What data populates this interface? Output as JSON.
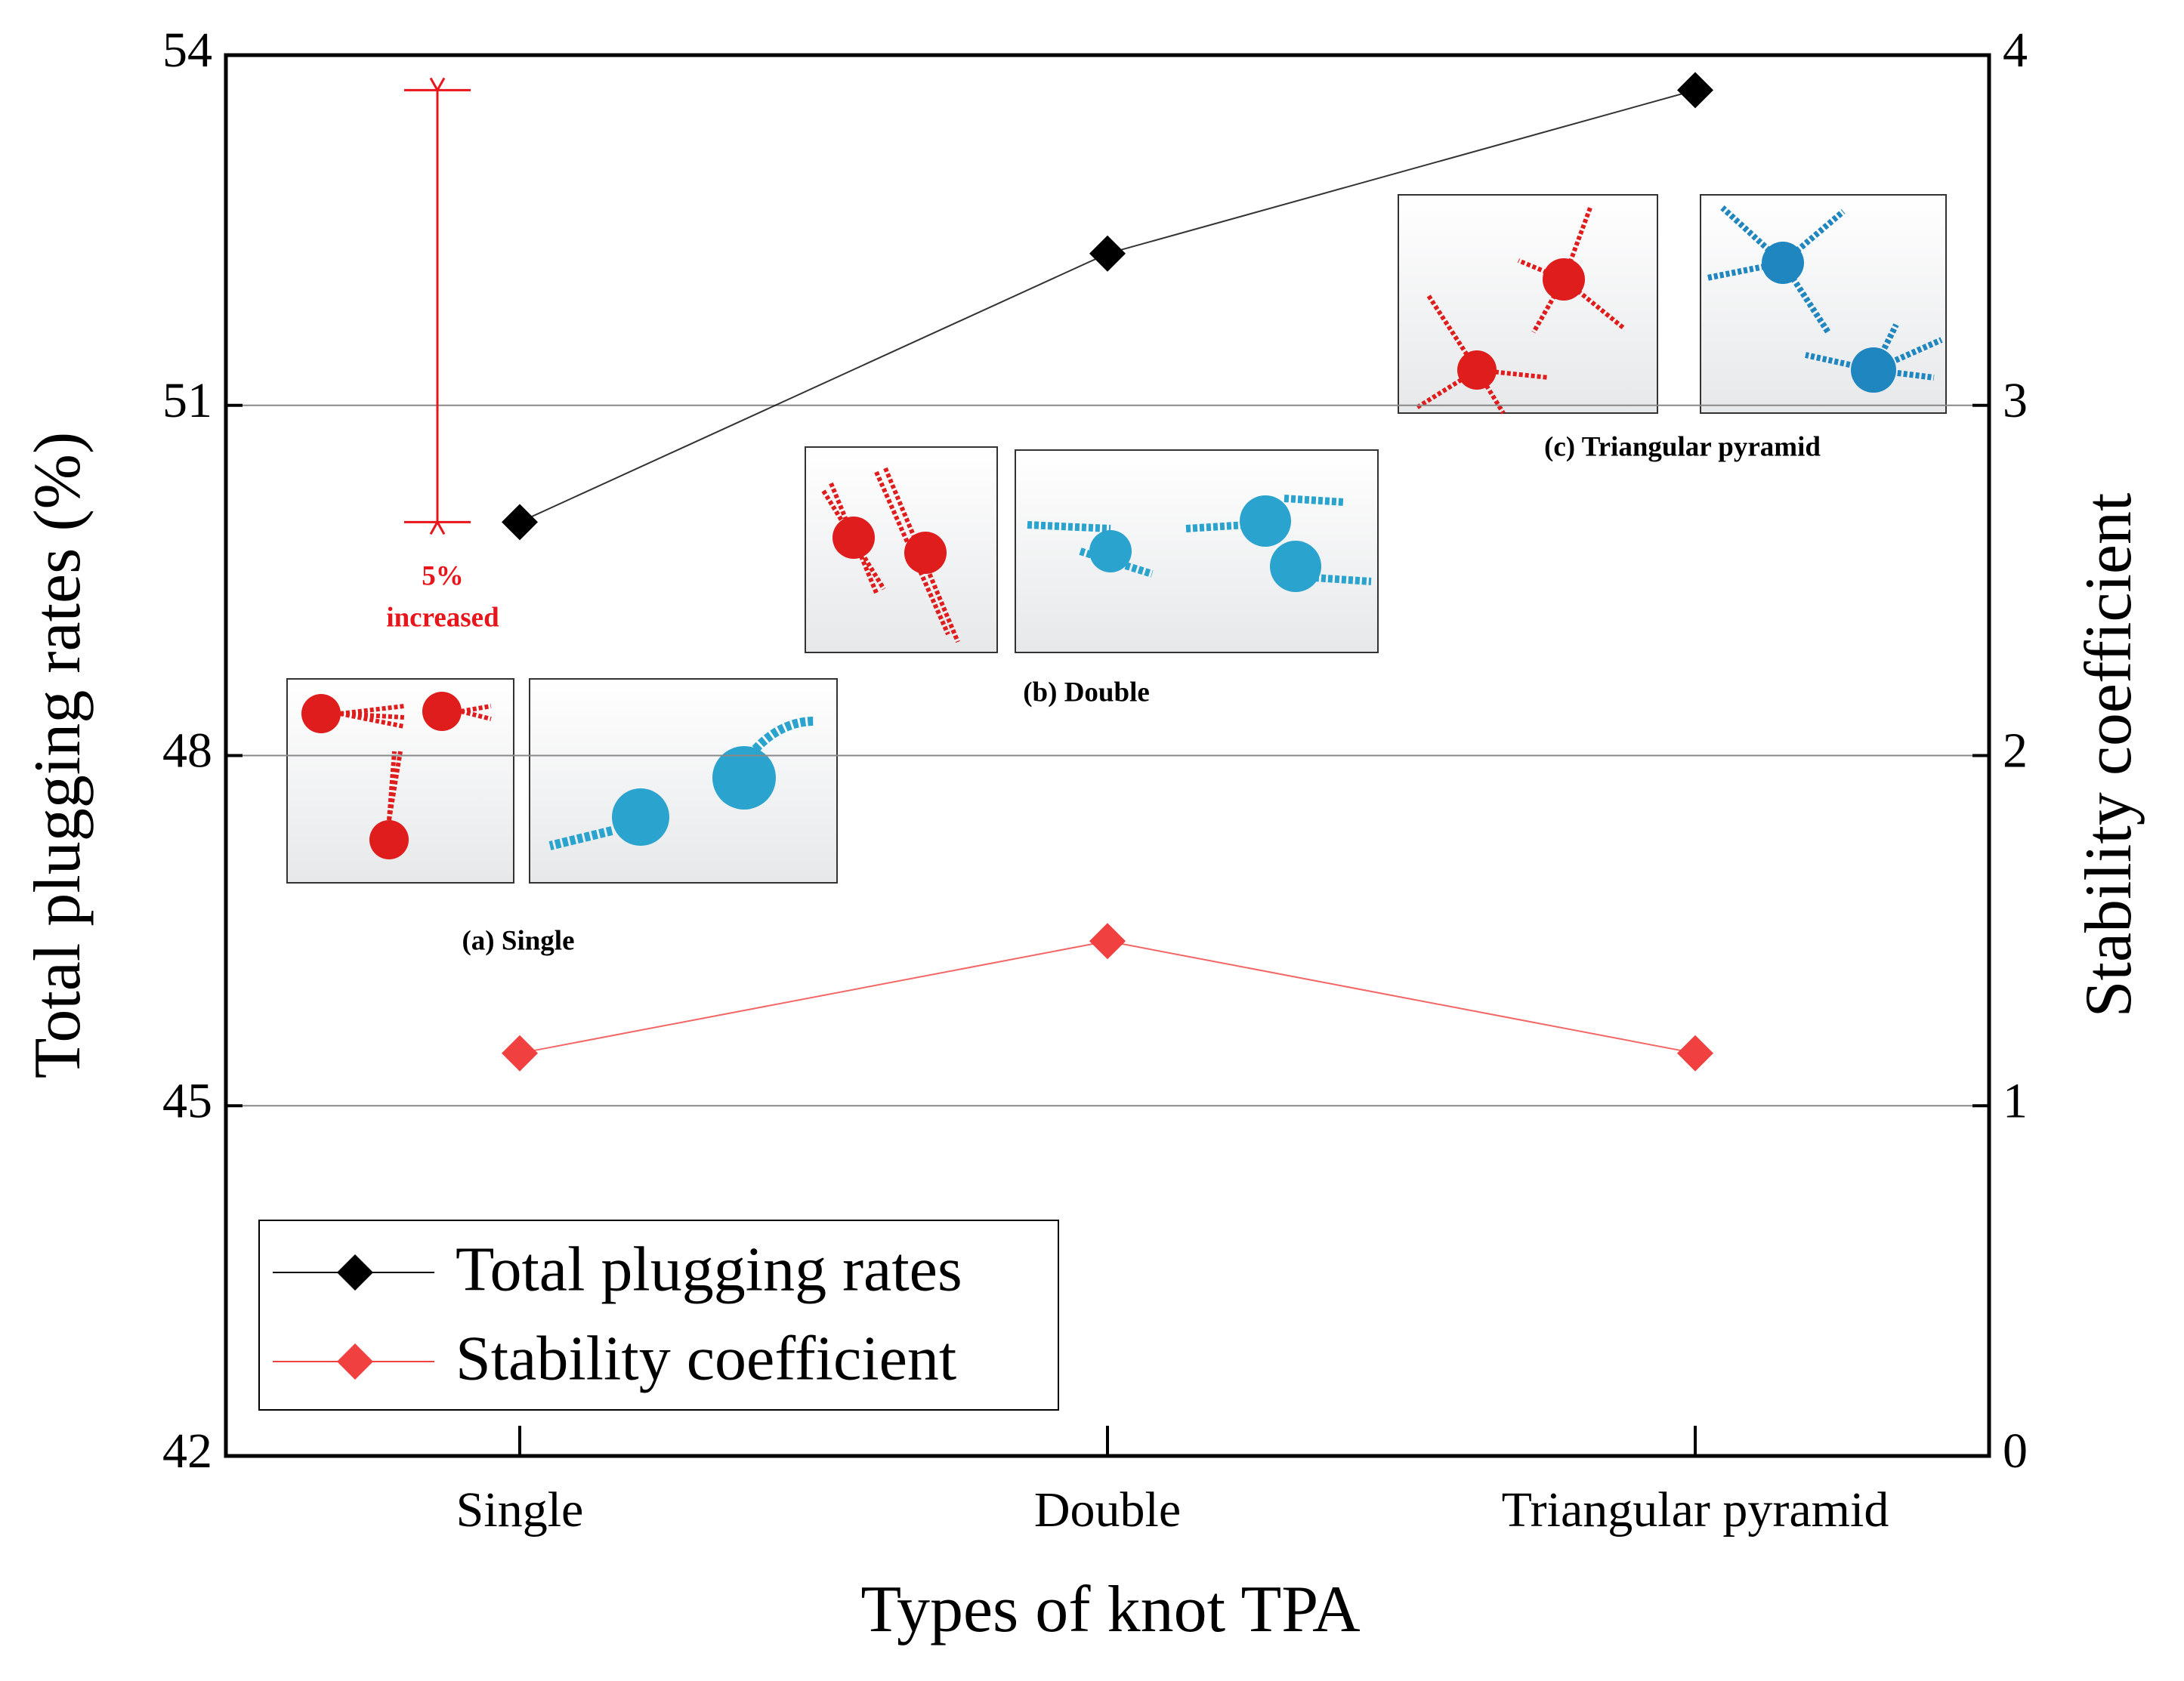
{
  "chart_data": {
    "type": "line",
    "x_label": "Types of knot TPA",
    "y_label": "Total plugging rates (%)",
    "y2_label": "Stability coefficient",
    "categories": [
      "Single",
      "Double",
      "Triangular pyramid"
    ],
    "series": [
      {
        "name": "Total plugging rates",
        "color": "#000000",
        "values": [
          50.0,
          52.3,
          53.7
        ]
      },
      {
        "name": "Stability coefficient",
        "color": "#f04040",
        "axis": "y2",
        "values": [
          1.15,
          1.47,
          1.15
        ]
      }
    ],
    "ylim": [
      42,
      54
    ],
    "yticks": [
      42,
      45,
      48,
      51,
      54
    ],
    "y2lim": [
      0,
      4
    ],
    "y2ticks": [
      0,
      1,
      2,
      3,
      4
    ],
    "grid": true,
    "legend": "lower left",
    "annotations": [
      "5%",
      "increased",
      "(a) Single",
      "(b) Double",
      "(c) Triangular pyramid"
    ]
  }
}
